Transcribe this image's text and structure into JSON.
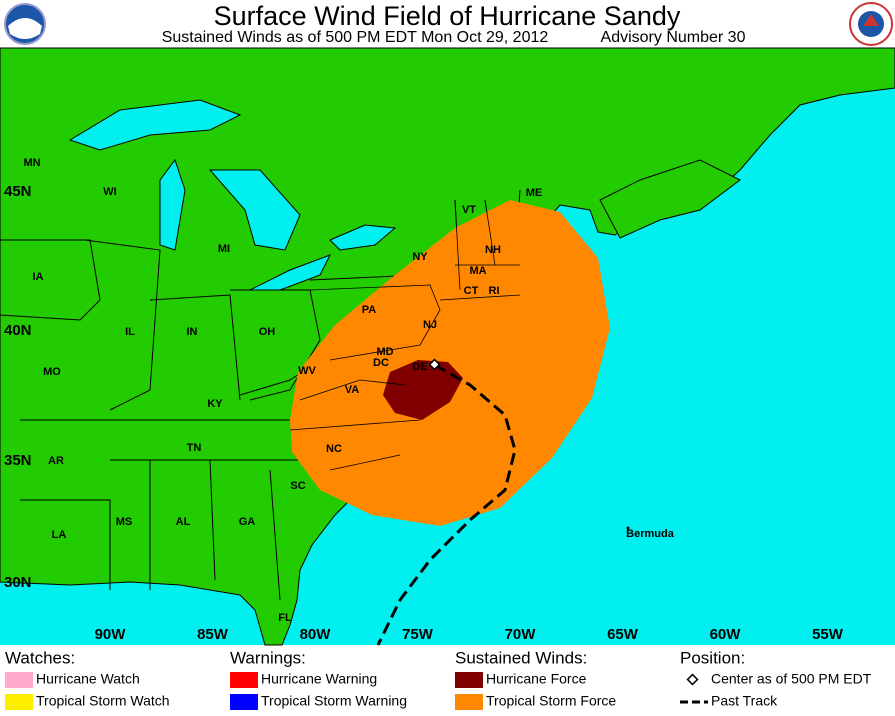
{
  "header": {
    "title": "Surface Wind Field of Hurricane Sandy",
    "subtitle": "Sustained Winds as of 500 PM EDT Mon Oct 29, 2012",
    "advisory": "Advisory Number 30"
  },
  "map": {
    "states": [
      "MN",
      "WI",
      "MI",
      "IA",
      "IL",
      "IN",
      "OH",
      "MO",
      "KY",
      "WV",
      "VA",
      "MD",
      "DC",
      "DE",
      "NJ",
      "PA",
      "NY",
      "VT",
      "NH",
      "MA",
      "CT",
      "RI",
      "ME",
      "TN",
      "NC",
      "AR",
      "SC",
      "MS",
      "AL",
      "GA",
      "LA",
      "FL"
    ],
    "latitudes": [
      "45N",
      "40N",
      "35N",
      "30N"
    ],
    "longitudes": [
      "90W",
      "85W",
      "80W",
      "75W",
      "70W",
      "65W",
      "60W",
      "55W"
    ],
    "places": [
      "Bermuda"
    ]
  },
  "legend": {
    "groups": [
      {
        "title": "Watches:",
        "items": [
          "Hurricane Watch",
          "Tropical Storm Watch"
        ]
      },
      {
        "title": "Warnings:",
        "items": [
          "Hurricane Warning",
          "Tropical Storm Warning"
        ]
      },
      {
        "title": "Sustained Winds:",
        "items": [
          "Hurricane Force",
          "Tropical Storm Force"
        ]
      },
      {
        "title": "Position:",
        "items": [
          "Center as of 500 PM EDT",
          "Past Track"
        ]
      }
    ]
  }
}
